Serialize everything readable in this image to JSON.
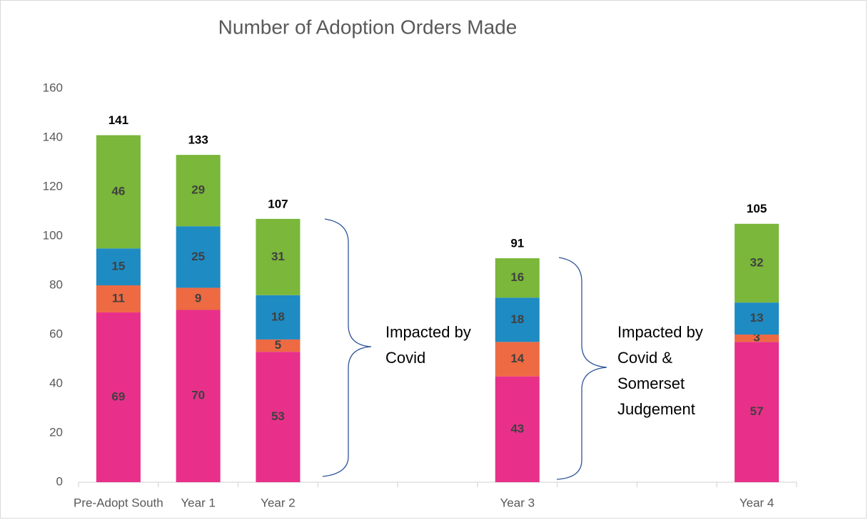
{
  "chart_data": {
    "type": "stacked_bar",
    "title": "Number of Adoption Orders Made",
    "categories": [
      "Pre-Adopt South",
      "Year 1",
      "Year 2",
      null,
      null,
      "Year 3",
      null,
      null,
      "Year 4"
    ],
    "series": [
      {
        "color": "#e8308a",
        "values": [
          69,
          70,
          53,
          null,
          null,
          43,
          null,
          null,
          57
        ]
      },
      {
        "color": "#ed6a43",
        "values": [
          11,
          9,
          5,
          null,
          null,
          14,
          null,
          null,
          3
        ]
      },
      {
        "color": "#1e8bc3",
        "values": [
          15,
          25,
          18,
          null,
          null,
          18,
          null,
          null,
          13
        ]
      },
      {
        "color": "#7ab73a",
        "values": [
          46,
          29,
          31,
          null,
          null,
          16,
          null,
          null,
          32
        ]
      }
    ],
    "totals": [
      141,
      133,
      107,
      null,
      null,
      91,
      null,
      null,
      105
    ],
    "ylim": [
      0,
      160
    ],
    "yticks": [
      0,
      20,
      40,
      60,
      80,
      100,
      120,
      140,
      160
    ],
    "grid": false,
    "annotations": [
      {
        "lines": [
          "Impacted by",
          "Covid"
        ]
      },
      {
        "lines": [
          "Impacted by",
          "Covid &",
          "Somerset",
          "Judgement"
        ]
      }
    ]
  }
}
